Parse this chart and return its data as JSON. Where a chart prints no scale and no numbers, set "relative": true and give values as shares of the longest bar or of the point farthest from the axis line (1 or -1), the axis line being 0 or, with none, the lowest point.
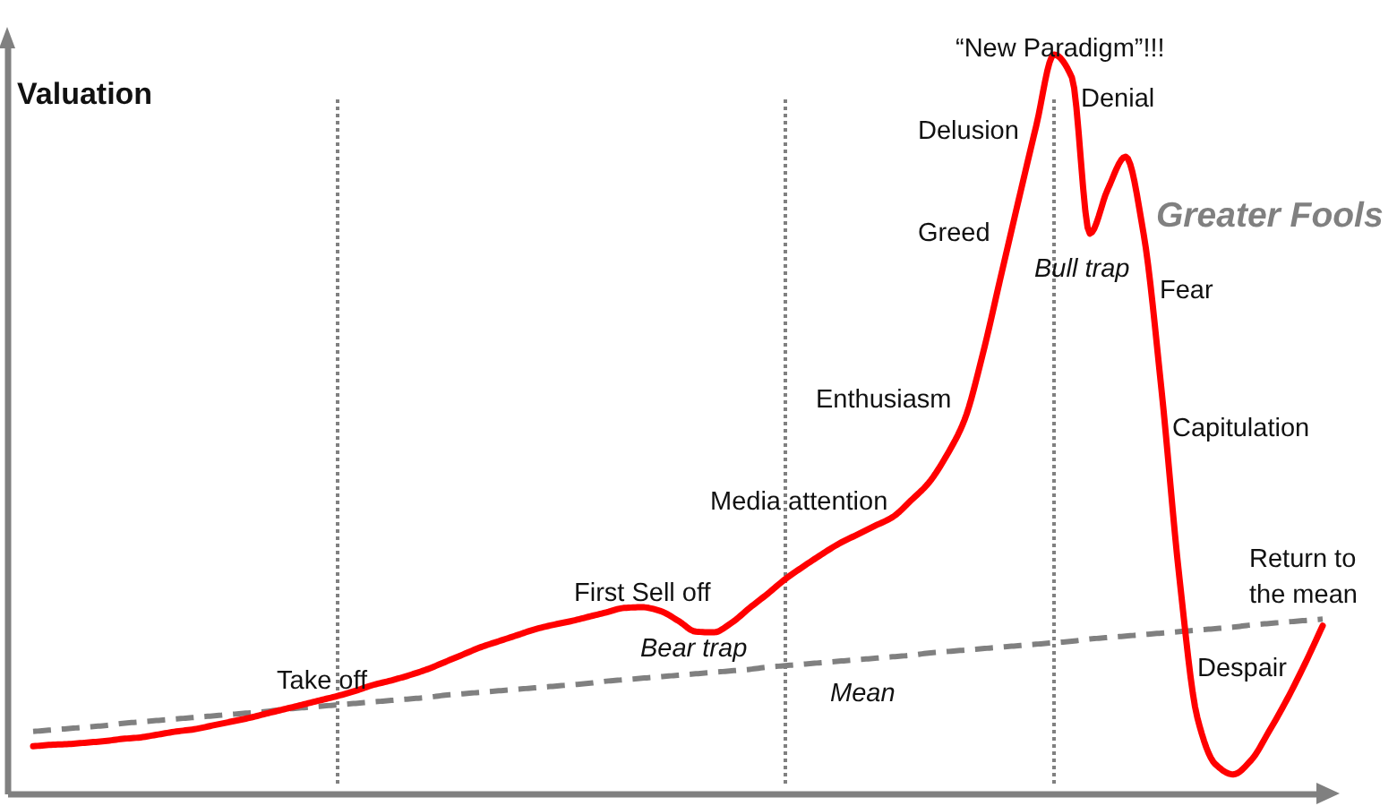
{
  "chart_data": {
    "type": "line",
    "relative": true,
    "ylabel": "Valuation",
    "grid": "x",
    "categories": [
      null,
      null,
      null,
      null,
      null,
      null,
      null,
      null,
      null,
      null,
      null,
      null,
      null,
      null,
      null,
      null,
      null,
      null,
      null,
      null,
      null,
      null,
      null,
      null,
      null,
      null,
      null,
      null,
      null,
      null,
      null,
      null,
      null,
      null,
      null,
      null,
      null,
      null,
      null,
      null,
      null,
      null,
      null,
      null,
      null,
      null,
      null,
      null,
      null,
      null,
      null,
      null,
      null,
      null,
      null,
      null,
      null,
      null,
      null,
      null,
      null,
      null,
      null,
      null,
      null,
      null,
      null,
      null,
      null,
      null,
      null,
      null,
      null
    ],
    "series": [
      {
        "name": "Mean",
        "color": "#808080",
        "line_style": "dashed",
        "values": [
          0.085,
          0.087,
          0.089,
          0.091,
          0.093,
          0.096,
          0.098,
          0.1,
          0.102,
          0.104,
          0.106,
          0.108,
          0.11,
          0.112,
          0.115,
          0.117,
          0.119,
          0.121,
          0.123,
          0.125,
          0.127,
          0.129,
          0.131,
          0.134,
          0.136,
          0.138,
          0.14,
          0.142,
          0.144,
          0.146,
          0.148,
          0.15,
          0.153,
          0.155,
          0.157,
          0.159,
          0.161,
          0.163,
          0.165,
          0.167,
          0.169,
          0.172,
          0.174,
          0.176,
          0.178,
          0.18,
          0.182,
          0.184,
          0.186,
          0.188,
          0.191,
          0.193,
          0.195,
          0.197,
          0.199,
          0.201,
          0.203,
          0.205,
          0.207,
          0.21,
          0.212,
          0.214,
          0.216,
          0.218,
          0.22,
          0.222,
          0.224,
          0.226,
          0.229,
          0.231,
          0.233,
          0.235,
          0.237
        ]
      },
      {
        "color": "#ff0000",
        "line_style": "solid",
        "values": [
          0.065,
          0.067,
          0.068,
          0.07,
          0.072,
          0.075,
          0.077,
          0.081,
          0.085,
          0.088,
          0.093,
          0.098,
          0.103,
          0.109,
          0.115,
          0.121,
          0.127,
          0.133,
          0.14,
          0.148,
          0.154,
          0.161,
          0.169,
          0.179,
          0.189,
          0.199,
          0.207,
          0.215,
          0.223,
          0.229,
          0.234,
          0.24,
          0.246,
          0.252,
          0.253,
          0.248,
          0.235,
          0.22,
          0.219,
          0.232,
          0.252,
          0.271,
          0.291,
          0.308,
          0.324,
          0.339,
          0.351,
          0.363,
          0.375,
          0.397,
          0.421,
          0.458,
          0.506,
          0.593,
          0.697,
          0.801,
          0.903,
          1.0,
          0.969,
          0.758,
          0.818,
          0.862,
          0.758,
          0.547,
          0.293,
          0.104,
          0.041,
          0.027,
          0.046,
          0.085,
          0.128,
          0.176,
          0.228
        ]
      }
    ],
    "annotations": [
      "Take off",
      "First Sell off",
      "Bear trap",
      "Media attention",
      "Enthusiasm",
      "Greed",
      "Delusion",
      "“New Paradigm”!!!",
      "Denial",
      "Bull trap",
      "Greater Fools",
      "Fear",
      "Capitulation",
      "Despair",
      "Return to the mean"
    ]
  }
}
